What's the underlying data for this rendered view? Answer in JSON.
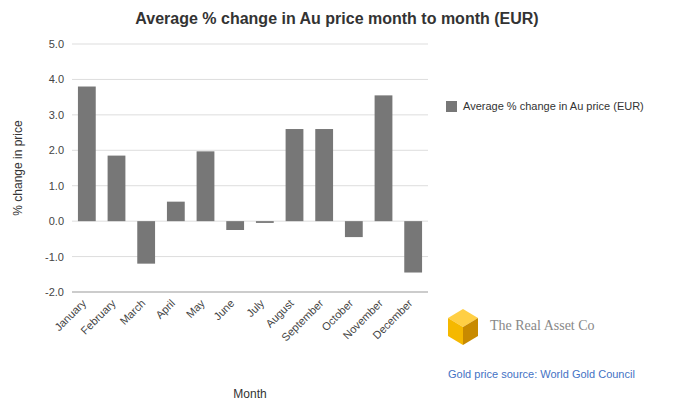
{
  "chart_data": {
    "type": "bar",
    "title": "Average % change in Au price month to month (EUR)",
    "x_label": "Month",
    "y_label": "% change in price",
    "categories": [
      "January",
      "February",
      "March",
      "April",
      "May",
      "June",
      "July",
      "August",
      "September",
      "October",
      "November",
      "December"
    ],
    "series": [
      {
        "name": "Average % change in Au price (EUR)",
        "color": "#777777",
        "values": [
          3.8,
          1.85,
          -1.2,
          0.55,
          1.97,
          -0.25,
          -0.05,
          2.6,
          2.6,
          -0.45,
          3.55,
          -1.45
        ]
      }
    ],
    "ylim": [
      -2.0,
      5.0
    ],
    "yticks": [
      {
        "value": -2.0,
        "label": "-2.0"
      },
      {
        "value": -1.0,
        "label": "-1.0"
      },
      {
        "value": 0.0,
        "label": "0.0"
      },
      {
        "value": 1.0,
        "label": "1.0"
      },
      {
        "value": 2.0,
        "label": "2.0"
      },
      {
        "value": 3.0,
        "label": "3.0"
      },
      {
        "value": 4.0,
        "label": "4.0"
      },
      {
        "value": 5.0,
        "label": "5.0"
      }
    ],
    "grid": true,
    "legend": "right",
    "annotations": [
      "The Real Asset Co",
      "Gold price source: World Gold Council"
    ]
  }
}
